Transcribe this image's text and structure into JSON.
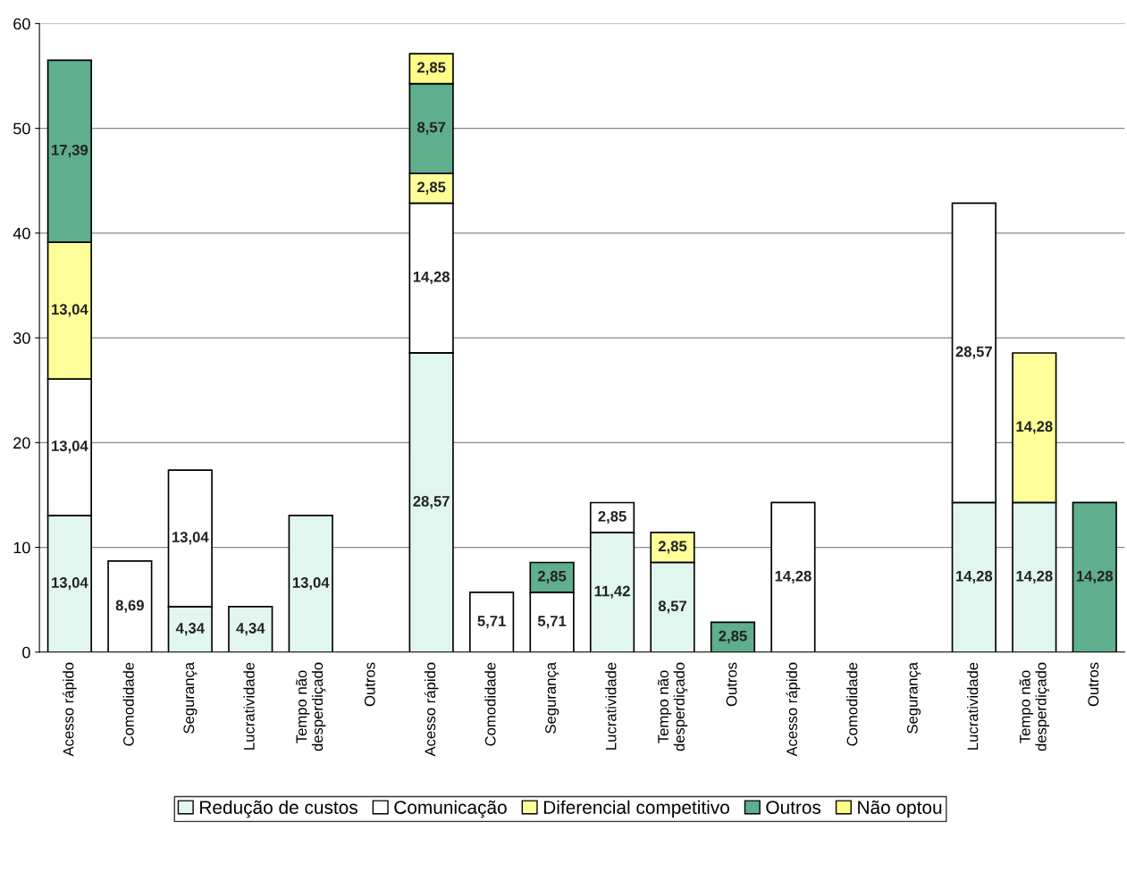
{
  "chart_data": {
    "type": "bar",
    "stacked": true,
    "categories": [
      "Acesso rápido",
      "Comodidade",
      "Segurança",
      "Lucratividade",
      "Tempo não\ndesperdiçado",
      "Outros",
      "Acesso rápido",
      "Comodidade",
      "Segurança",
      "Lucratividade",
      "Tempo não\ndesperdiçado",
      "Outros",
      "Acesso rápido",
      "Comodidade",
      "Segurança",
      "Lucratividade",
      "Tempo não\ndesperdiçado",
      "Outros"
    ],
    "series": [
      {
        "name": "Redução de custos",
        "color": "#e2f6f0",
        "values": [
          13.04,
          null,
          4.34,
          4.34,
          13.04,
          null,
          28.57,
          null,
          null,
          11.42,
          8.57,
          null,
          null,
          null,
          null,
          14.28,
          14.28,
          null
        ],
        "value_labels": [
          "13,04",
          null,
          "4,34",
          "4,34",
          "13,04",
          null,
          "28,57",
          null,
          null,
          "11,42",
          "8,57",
          null,
          null,
          null,
          null,
          "14,28",
          "14,28",
          null
        ]
      },
      {
        "name": "Comunicação",
        "color": "#ffffff",
        "values": [
          13.04,
          8.69,
          13.04,
          null,
          null,
          null,
          14.28,
          5.71,
          5.71,
          2.85,
          null,
          null,
          14.28,
          null,
          null,
          28.57,
          null,
          null
        ],
        "value_labels": [
          "13,04",
          "8,69",
          "13,04",
          null,
          null,
          null,
          "14,28",
          "5,71",
          "5,71",
          "2,85",
          null,
          null,
          "14,28",
          null,
          null,
          "28,57",
          null,
          null
        ]
      },
      {
        "name": "Diferencial competitivo",
        "color": "#ffff99",
        "values": [
          13.04,
          null,
          null,
          null,
          null,
          null,
          2.85,
          null,
          null,
          null,
          2.85,
          null,
          null,
          null,
          null,
          null,
          14.28,
          null
        ],
        "value_labels": [
          "13,04",
          null,
          null,
          null,
          null,
          null,
          "2,85",
          null,
          null,
          null,
          "2,85",
          null,
          null,
          null,
          null,
          null,
          "14,28",
          null
        ]
      },
      {
        "name": "Outros",
        "color": "#5fae8e",
        "values": [
          17.39,
          null,
          null,
          null,
          null,
          null,
          8.57,
          null,
          2.85,
          null,
          null,
          2.85,
          null,
          null,
          null,
          null,
          null,
          14.28
        ],
        "value_labels": [
          "17,39",
          null,
          null,
          null,
          null,
          null,
          "8,57",
          null,
          "2,85",
          null,
          null,
          "2,85",
          null,
          null,
          null,
          null,
          null,
          "14,28"
        ]
      },
      {
        "name": "Não optou",
        "color": "#ffff88",
        "values": [
          null,
          null,
          null,
          null,
          null,
          null,
          2.85,
          null,
          null,
          null,
          null,
          null,
          null,
          null,
          null,
          null,
          null,
          null
        ],
        "value_labels": [
          null,
          null,
          null,
          null,
          null,
          null,
          "2,85",
          null,
          null,
          null,
          null,
          null,
          null,
          null,
          null,
          null,
          null,
          null
        ]
      }
    ],
    "ylim": [
      0,
      60
    ],
    "yticks": [
      0,
      10,
      20,
      30,
      40,
      50,
      60
    ],
    "grid": "y",
    "legend": "bottom"
  }
}
